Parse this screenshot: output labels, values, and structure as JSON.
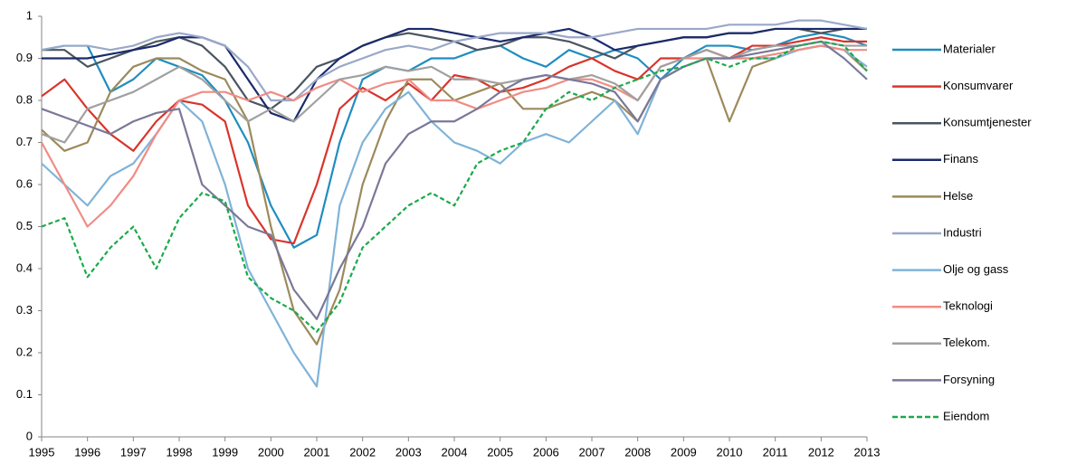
{
  "chart_data": {
    "type": "line",
    "x": [
      1995,
      1995.5,
      1996,
      1996.5,
      1997,
      1997.5,
      1998,
      1998.5,
      1999,
      1999.5,
      2000,
      2000.5,
      2001,
      2001.5,
      2002,
      2002.5,
      2003,
      2003.5,
      2004,
      2004.5,
      2005,
      2005.5,
      2006,
      2006.5,
      2007,
      2007.5,
      2008,
      2008.5,
      2009,
      2009.5,
      2010,
      2010.5,
      2011,
      2011.5,
      2012,
      2012.5,
      2013
    ],
    "xlim": [
      1995,
      2013
    ],
    "xticks": [
      1995,
      1996,
      1997,
      1998,
      1999,
      2000,
      2001,
      2002,
      2003,
      2004,
      2005,
      2006,
      2007,
      2008,
      2009,
      2010,
      2011,
      2012,
      2013
    ],
    "ylim": [
      0,
      1
    ],
    "yticks": [
      0,
      0.1,
      0.2,
      0.3,
      0.4,
      0.5,
      0.6,
      0.7,
      0.8,
      0.9,
      1
    ],
    "grid": false,
    "legend": "right",
    "series": [
      {
        "name": "Materialer",
        "color": "#1f8dbf",
        "dashed": false,
        "values": [
          0.92,
          0.93,
          0.93,
          0.82,
          0.85,
          0.9,
          0.88,
          0.86,
          0.8,
          0.7,
          0.55,
          0.45,
          0.48,
          0.7,
          0.85,
          0.88,
          0.87,
          0.9,
          0.9,
          0.92,
          0.93,
          0.9,
          0.88,
          0.92,
          0.9,
          0.92,
          0.9,
          0.85,
          0.9,
          0.93,
          0.93,
          0.92,
          0.93,
          0.95,
          0.96,
          0.95,
          0.93
        ]
      },
      {
        "name": "Konsumvarer",
        "color": "#d9342b",
        "dashed": false,
        "values": [
          0.81,
          0.85,
          0.78,
          0.72,
          0.68,
          0.75,
          0.8,
          0.79,
          0.75,
          0.55,
          0.47,
          0.46,
          0.6,
          0.78,
          0.83,
          0.8,
          0.84,
          0.8,
          0.86,
          0.85,
          0.82,
          0.83,
          0.85,
          0.88,
          0.9,
          0.87,
          0.85,
          0.9,
          0.9,
          0.92,
          0.9,
          0.93,
          0.93,
          0.94,
          0.95,
          0.94,
          0.94
        ]
      },
      {
        "name": "Konsumtjenester",
        "color": "#4a5560",
        "dashed": false,
        "values": [
          0.92,
          0.92,
          0.88,
          0.9,
          0.92,
          0.94,
          0.95,
          0.93,
          0.88,
          0.8,
          0.78,
          0.82,
          0.88,
          0.9,
          0.93,
          0.95,
          0.96,
          0.95,
          0.94,
          0.92,
          0.93,
          0.95,
          0.95,
          0.94,
          0.92,
          0.9,
          0.93,
          0.94,
          0.95,
          0.95,
          0.96,
          0.96,
          0.97,
          0.97,
          0.96,
          0.97,
          0.97
        ]
      },
      {
        "name": "Finans",
        "color": "#1a2a6c",
        "dashed": false,
        "values": [
          0.9,
          0.9,
          0.9,
          0.91,
          0.92,
          0.93,
          0.95,
          0.95,
          0.93,
          0.85,
          0.77,
          0.75,
          0.85,
          0.9,
          0.93,
          0.95,
          0.97,
          0.97,
          0.96,
          0.95,
          0.94,
          0.95,
          0.96,
          0.97,
          0.95,
          0.92,
          0.93,
          0.94,
          0.95,
          0.95,
          0.96,
          0.96,
          0.97,
          0.97,
          0.97,
          0.97,
          0.97
        ]
      },
      {
        "name": "Helse",
        "color": "#9c8a5c",
        "dashed": false,
        "values": [
          0.73,
          0.68,
          0.7,
          0.82,
          0.88,
          0.9,
          0.9,
          0.87,
          0.85,
          0.75,
          0.5,
          0.3,
          0.22,
          0.35,
          0.6,
          0.75,
          0.85,
          0.85,
          0.8,
          0.82,
          0.84,
          0.78,
          0.78,
          0.8,
          0.82,
          0.8,
          0.75,
          0.85,
          0.88,
          0.9,
          0.75,
          0.88,
          0.9,
          0.92,
          0.93,
          0.92,
          0.87
        ]
      },
      {
        "name": "Industri",
        "color": "#9aa8c8",
        "dashed": false,
        "values": [
          0.92,
          0.93,
          0.93,
          0.92,
          0.93,
          0.95,
          0.96,
          0.95,
          0.93,
          0.88,
          0.8,
          0.8,
          0.85,
          0.88,
          0.9,
          0.92,
          0.93,
          0.92,
          0.94,
          0.95,
          0.96,
          0.96,
          0.96,
          0.95,
          0.95,
          0.96,
          0.97,
          0.97,
          0.97,
          0.97,
          0.98,
          0.98,
          0.98,
          0.99,
          0.99,
          0.98,
          0.97
        ]
      },
      {
        "name": "Olje og gass",
        "color": "#7fb3d8",
        "dashed": false,
        "values": [
          0.65,
          0.6,
          0.55,
          0.62,
          0.65,
          0.72,
          0.8,
          0.75,
          0.6,
          0.4,
          0.3,
          0.2,
          0.12,
          0.55,
          0.7,
          0.78,
          0.82,
          0.75,
          0.7,
          0.68,
          0.65,
          0.7,
          0.72,
          0.7,
          0.75,
          0.8,
          0.72,
          0.85,
          0.88,
          0.9,
          0.9,
          0.9,
          0.9,
          0.92,
          0.93,
          0.92,
          0.88
        ]
      },
      {
        "name": "Teknologi",
        "color": "#f08c84",
        "dashed": false,
        "values": [
          0.7,
          0.6,
          0.5,
          0.55,
          0.62,
          0.72,
          0.8,
          0.82,
          0.82,
          0.8,
          0.82,
          0.8,
          0.83,
          0.85,
          0.82,
          0.84,
          0.85,
          0.8,
          0.8,
          0.78,
          0.8,
          0.82,
          0.83,
          0.85,
          0.85,
          0.83,
          0.8,
          0.88,
          0.9,
          0.9,
          0.9,
          0.9,
          0.91,
          0.92,
          0.93,
          0.92,
          0.92
        ]
      },
      {
        "name": "Telekom.",
        "color": "#a0a0a0",
        "dashed": false,
        "values": [
          0.72,
          0.7,
          0.78,
          0.8,
          0.82,
          0.85,
          0.88,
          0.85,
          0.8,
          0.75,
          0.78,
          0.75,
          0.8,
          0.85,
          0.86,
          0.88,
          0.87,
          0.88,
          0.85,
          0.85,
          0.84,
          0.85,
          0.86,
          0.85,
          0.86,
          0.84,
          0.8,
          0.88,
          0.9,
          0.92,
          0.9,
          0.92,
          0.93,
          0.93,
          0.94,
          0.93,
          0.93
        ]
      },
      {
        "name": "Forsyning",
        "color": "#7a7898",
        "dashed": false,
        "values": [
          0.78,
          0.76,
          0.74,
          0.72,
          0.75,
          0.77,
          0.78,
          0.6,
          0.55,
          0.5,
          0.48,
          0.35,
          0.28,
          0.4,
          0.5,
          0.65,
          0.72,
          0.75,
          0.75,
          0.78,
          0.82,
          0.85,
          0.86,
          0.85,
          0.84,
          0.82,
          0.75,
          0.85,
          0.88,
          0.9,
          0.9,
          0.91,
          0.92,
          0.93,
          0.94,
          0.9,
          0.85
        ]
      },
      {
        "name": "Eiendom",
        "color": "#1aaa4a",
        "dashed": true,
        "values": [
          0.5,
          0.52,
          0.38,
          0.45,
          0.5,
          0.4,
          0.52,
          0.58,
          0.56,
          0.38,
          0.33,
          0.3,
          0.25,
          0.32,
          0.45,
          0.5,
          0.55,
          0.58,
          0.55,
          0.65,
          0.68,
          0.7,
          0.78,
          0.82,
          0.8,
          0.83,
          0.85,
          0.87,
          0.88,
          0.9,
          0.88,
          0.9,
          0.9,
          0.93,
          0.94,
          0.93,
          0.87
        ]
      }
    ]
  }
}
